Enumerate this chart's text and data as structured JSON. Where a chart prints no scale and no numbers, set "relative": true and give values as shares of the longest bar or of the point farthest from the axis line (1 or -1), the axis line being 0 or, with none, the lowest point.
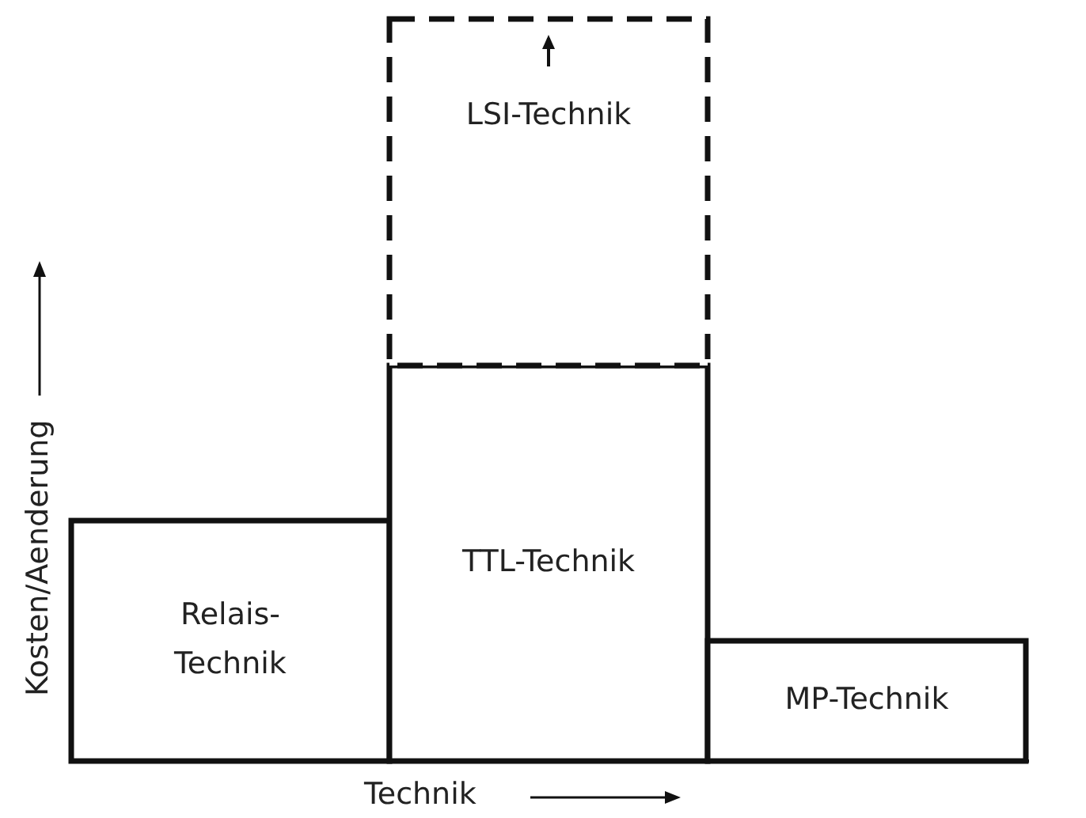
{
  "chart_data": {
    "type": "bar",
    "relative": true,
    "stacked": true,
    "xlabel": "Technik",
    "ylabel": "Kosten/Aenderung",
    "categories": [
      "Relais-\nTechnik",
      "TTL-Technik",
      "MP-Technik"
    ],
    "series": [
      {
        "color": "#ffffff",
        "values": [
          0.324,
          0.533,
          0.162
        ],
        "line_style": "solid"
      },
      {
        "name": "LSI-Technik",
        "color": "#ffffff",
        "values": [
          null,
          0.467,
          null
        ],
        "line_style": "dashed"
      }
    ]
  }
}
